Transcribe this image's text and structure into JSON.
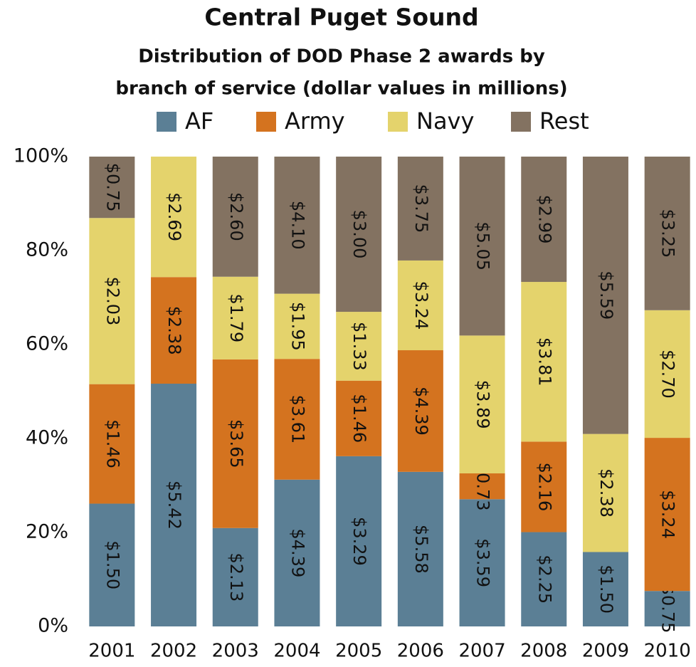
{
  "chart_data": {
    "type": "stacked_percent_bar",
    "title": "Central Puget Sound",
    "subtitle": [
      "Distribution of DOD Phase 2 awards by",
      "branch of service (dollar values in millions)"
    ],
    "categories": [
      "2001",
      "2002",
      "2003",
      "2004",
      "2005",
      "2006",
      "2007",
      "2008",
      "2009",
      "2010"
    ],
    "series": [
      {
        "name": "AF",
        "color": "#5b7f95",
        "values": [
          1.5,
          5.42,
          2.13,
          4.39,
          3.29,
          5.58,
          3.59,
          2.25,
          1.5,
          0.75
        ],
        "value_labels": [
          "$1.50",
          "$5.42",
          "$2.13",
          "$4.39",
          "$3.29",
          "$5.58",
          "$3.59",
          "$2.25",
          "$1.50",
          "$0.75"
        ]
      },
      {
        "name": "Army",
        "color": "#d4731f",
        "values": [
          1.46,
          2.38,
          3.65,
          3.61,
          1.46,
          4.39,
          0.73,
          2.16,
          null,
          3.24
        ],
        "value_labels": [
          "$1.46",
          "$2.38",
          "$3.65",
          "$3.61",
          "$1.46",
          "$4.39",
          "$0.73",
          "$2.16",
          null,
          "$3.24"
        ]
      },
      {
        "name": "Navy",
        "color": "#e4d36c",
        "values": [
          2.03,
          2.69,
          1.79,
          1.95,
          1.33,
          3.24,
          3.89,
          3.81,
          2.38,
          2.7
        ],
        "value_labels": [
          "$2.03",
          "$2.69",
          "$1.79",
          "$1.95",
          "$1.33",
          "$3.24",
          "$3.89",
          "$3.81",
          "$2.38",
          "$2.70"
        ]
      },
      {
        "name": "Rest",
        "color": "#837261",
        "values": [
          0.75,
          null,
          2.6,
          4.1,
          3.0,
          3.75,
          5.05,
          2.99,
          5.59,
          3.25
        ],
        "value_labels": [
          "$0.75",
          null,
          "$2.60",
          "$4.10",
          "$3.00",
          "$3.75",
          "$5.05",
          "$2.99",
          "$5.59",
          "$3.25"
        ]
      }
    ],
    "ylim": [
      0,
      100
    ],
    "yticks": [
      {
        "value": 0,
        "label": "0%"
      },
      {
        "value": 20,
        "label": "20%"
      },
      {
        "value": 40,
        "label": "40%"
      },
      {
        "value": 60,
        "label": "60%"
      },
      {
        "value": 80,
        "label": "80%"
      },
      {
        "value": 100,
        "label": "100%"
      }
    ],
    "legend": "top"
  }
}
